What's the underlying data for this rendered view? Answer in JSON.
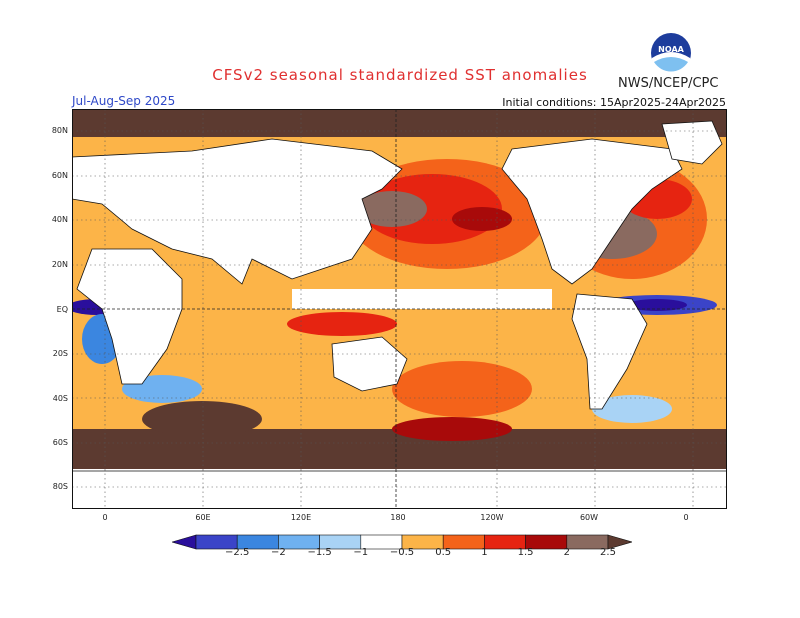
{
  "title": "CFSv2 seasonal standardized SST anomalies",
  "season": "Jul-Aug-Sep 2025",
  "initial_conditions": "Initial conditions: 15Apr2025-24Apr2025",
  "agency": "NWS/NCEP/CPC",
  "logo_text": "NOAA",
  "lat_ticks": [
    "80N",
    "60N",
    "40N",
    "20N",
    "EQ",
    "20S",
    "40S",
    "60S",
    "80S"
  ],
  "lon_ticks": [
    "0",
    "60E",
    "120E",
    "180",
    "120W",
    "60W",
    "0"
  ],
  "colorbar": {
    "labels": [
      "-2.5",
      "-2",
      "-1.5",
      "-1",
      "-0.5",
      "0.5",
      "1",
      "1.5",
      "2",
      "2.5"
    ],
    "colors": [
      "#2a0f9c",
      "#3b44c8",
      "#3b86e0",
      "#6fb1f0",
      "#a9d3f5",
      "#ffffff",
      "#fcb448",
      "#f4631a",
      "#e62411",
      "#a80a0a",
      "#8a6a60",
      "#5c3a30"
    ]
  }
}
